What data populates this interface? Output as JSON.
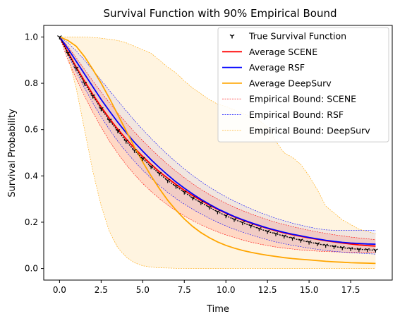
{
  "chart_data": {
    "type": "line",
    "title": "Survival Function with 90% Empirical Bound",
    "xlabel": "Time",
    "ylabel": "Survival Probability",
    "xlim": [
      -0.95,
      20.0
    ],
    "ylim": [
      -0.05,
      1.05
    ],
    "xticks": [
      0.0,
      2.5,
      5.0,
      7.5,
      10.0,
      12.5,
      15.0,
      17.5
    ],
    "xtick_labels": [
      "0.0",
      "2.5",
      "5.0",
      "7.5",
      "10.0",
      "12.5",
      "15.0",
      "17.5"
    ],
    "yticks": [
      0.0,
      0.2,
      0.4,
      0.6,
      0.8,
      1.0
    ],
    "ytick_labels": [
      "0.0",
      "0.2",
      "0.4",
      "0.6",
      "0.8",
      "1.0"
    ],
    "grid": false,
    "legend_position": "top-right",
    "x": [
      0,
      0.5,
      1,
      1.5,
      2,
      2.5,
      3,
      3.5,
      4,
      4.5,
      5,
      5.5,
      6,
      6.5,
      7,
      7.5,
      8,
      8.5,
      9,
      9.5,
      10,
      10.5,
      11,
      11.5,
      12,
      12.5,
      13,
      13.5,
      14,
      14.5,
      15,
      15.5,
      16,
      16.5,
      17,
      17.5,
      18,
      18.5,
      19
    ],
    "series": [
      {
        "name": "True Survival Function",
        "color": "#000000",
        "style": "tri_down markers",
        "values": [
          1.0,
          0.93,
          0.865,
          0.8,
          0.745,
          0.69,
          0.64,
          0.595,
          0.55,
          0.51,
          0.475,
          0.44,
          0.41,
          0.38,
          0.355,
          0.33,
          0.305,
          0.285,
          0.265,
          0.245,
          0.228,
          0.212,
          0.198,
          0.185,
          0.172,
          0.16,
          0.15,
          0.14,
          0.131,
          0.122,
          0.114,
          0.107,
          0.1,
          0.095,
          0.09,
          0.086,
          0.083,
          0.081,
          0.079
        ]
      },
      {
        "name": "Average SCENE",
        "color": "#ff0000",
        "style": "solid",
        "values": [
          1.0,
          0.935,
          0.87,
          0.81,
          0.752,
          0.698,
          0.648,
          0.602,
          0.56,
          0.52,
          0.484,
          0.45,
          0.418,
          0.39,
          0.363,
          0.338,
          0.315,
          0.294,
          0.274,
          0.256,
          0.239,
          0.223,
          0.209,
          0.196,
          0.184,
          0.173,
          0.163,
          0.154,
          0.146,
          0.139,
          0.132,
          0.126,
          0.12,
          0.115,
          0.11,
          0.106,
          0.102,
          0.099,
          0.097
        ]
      },
      {
        "name": "Average RSF",
        "color": "#0000ff",
        "style": "solid",
        "values": [
          1.0,
          0.95,
          0.895,
          0.84,
          0.785,
          0.73,
          0.68,
          0.632,
          0.587,
          0.545,
          0.507,
          0.47,
          0.436,
          0.404,
          0.374,
          0.347,
          0.322,
          0.299,
          0.278,
          0.258,
          0.241,
          0.225,
          0.211,
          0.198,
          0.186,
          0.175,
          0.165,
          0.156,
          0.148,
          0.141,
          0.134,
          0.128,
          0.122,
          0.117,
          0.113,
          0.11,
          0.108,
          0.106,
          0.105
        ]
      },
      {
        "name": "Average DeepSurv",
        "color": "#ffa500",
        "style": "solid",
        "values": [
          1.0,
          0.985,
          0.96,
          0.915,
          0.86,
          0.8,
          0.735,
          0.665,
          0.595,
          0.525,
          0.46,
          0.4,
          0.345,
          0.295,
          0.252,
          0.214,
          0.182,
          0.155,
          0.133,
          0.115,
          0.1,
          0.088,
          0.078,
          0.07,
          0.063,
          0.057,
          0.052,
          0.047,
          0.043,
          0.04,
          0.037,
          0.034,
          0.031,
          0.029,
          0.027,
          0.025,
          0.024,
          0.023,
          0.022
        ]
      }
    ],
    "bounds": [
      {
        "name": "Empirical Bound: SCENE",
        "color": "#ff0000",
        "fill": "rgba(255,0,0,0.12)",
        "lower": [
          1.0,
          0.9,
          0.82,
          0.745,
          0.675,
          0.61,
          0.55,
          0.497,
          0.449,
          0.406,
          0.367,
          0.333,
          0.302,
          0.274,
          0.249,
          0.227,
          0.207,
          0.189,
          0.173,
          0.158,
          0.145,
          0.134,
          0.123,
          0.114,
          0.106,
          0.099,
          0.093,
          0.088,
          0.084,
          0.08,
          0.077,
          0.075,
          0.073,
          0.072,
          0.071,
          0.07,
          0.07,
          0.07,
          0.07
        ],
        "upper": [
          1.0,
          0.96,
          0.91,
          0.86,
          0.81,
          0.762,
          0.716,
          0.672,
          0.63,
          0.59,
          0.552,
          0.516,
          0.482,
          0.45,
          0.42,
          0.392,
          0.366,
          0.342,
          0.32,
          0.3,
          0.282,
          0.265,
          0.25,
          0.236,
          0.223,
          0.211,
          0.2,
          0.19,
          0.181,
          0.173,
          0.165,
          0.158,
          0.152,
          0.146,
          0.141,
          0.136,
          0.132,
          0.128,
          0.125
        ]
      },
      {
        "name": "Empirical Bound: RSF",
        "color": "#0000ff",
        "fill": "rgba(0,0,255,0.06)",
        "lower": [
          1.0,
          0.925,
          0.85,
          0.78,
          0.715,
          0.655,
          0.6,
          0.55,
          0.505,
          0.463,
          0.425,
          0.39,
          0.358,
          0.329,
          0.302,
          0.278,
          0.256,
          0.236,
          0.217,
          0.2,
          0.184,
          0.17,
          0.157,
          0.145,
          0.134,
          0.124,
          0.115,
          0.107,
          0.1,
          0.094,
          0.088,
          0.083,
          0.078,
          0.074,
          0.071,
          0.068,
          0.066,
          0.064,
          0.062
        ],
        "upper": [
          1.0,
          0.975,
          0.94,
          0.9,
          0.857,
          0.813,
          0.769,
          0.725,
          0.682,
          0.64,
          0.6,
          0.562,
          0.526,
          0.492,
          0.46,
          0.43,
          0.402,
          0.376,
          0.352,
          0.33,
          0.31,
          0.291,
          0.274,
          0.258,
          0.243,
          0.23,
          0.217,
          0.206,
          0.196,
          0.187,
          0.179,
          0.172,
          0.167,
          0.165,
          0.165,
          0.165,
          0.165,
          0.165,
          0.165
        ]
      },
      {
        "name": "Empirical Bound: DeepSurv",
        "color": "#ffa500",
        "fill": "rgba(255,165,0,0.12)",
        "lower": [
          1.0,
          0.92,
          0.78,
          0.6,
          0.42,
          0.27,
          0.16,
          0.09,
          0.05,
          0.025,
          0.012,
          0.006,
          0.003,
          0.002,
          0.001,
          0.001,
          0.0,
          0.0,
          0.0,
          0.0,
          0.0,
          0.0,
          0.0,
          0.0,
          0.0,
          0.0,
          0.0,
          0.0,
          0.0,
          0.0,
          0.0,
          0.0,
          0.0,
          0.0,
          0.0,
          0.0,
          0.0,
          0.0,
          0.0
        ],
        "upper": [
          1.0,
          1.0,
          1.0,
          1.0,
          0.998,
          0.995,
          0.99,
          0.985,
          0.975,
          0.96,
          0.945,
          0.93,
          0.9,
          0.87,
          0.845,
          0.81,
          0.78,
          0.755,
          0.73,
          0.71,
          0.7,
          0.685,
          0.67,
          0.655,
          0.64,
          0.61,
          0.55,
          0.5,
          0.48,
          0.45,
          0.4,
          0.34,
          0.27,
          0.24,
          0.21,
          0.19,
          0.17,
          0.16,
          0.15
        ]
      }
    ]
  }
}
